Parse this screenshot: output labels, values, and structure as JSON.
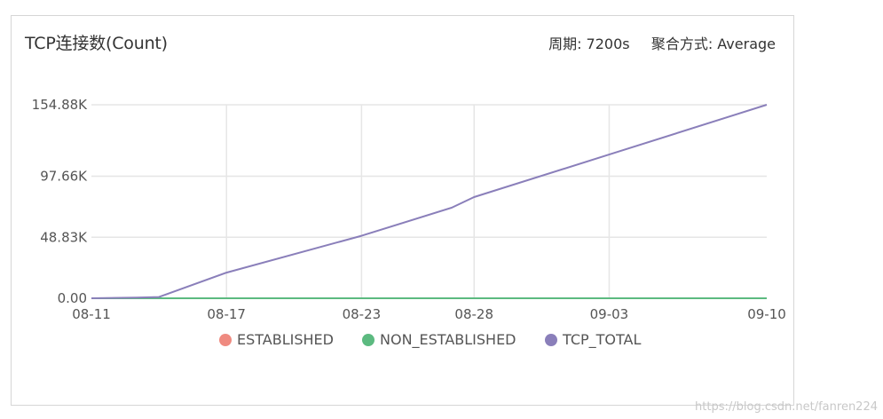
{
  "panel": {
    "title": "TCP连接数(Count)",
    "period_label": "周期: 7200s",
    "aggregation_label": "聚合方式: Average"
  },
  "chart_data": {
    "type": "line",
    "title": "TCP连接数(Count)",
    "xlabel": "",
    "ylabel": "",
    "x_tick_labels": [
      "08-11",
      "08-17",
      "08-23",
      "08-28",
      "09-03",
      "09-10"
    ],
    "y_tick_labels": [
      "0.00",
      "48.83K",
      "97.66K",
      "154.88K"
    ],
    "ylim": [
      0,
      154.88
    ],
    "y_unit": "K",
    "x_domain": [
      "2019-08-11",
      "2019-09-10"
    ],
    "grid": true,
    "legend_position": "bottom",
    "series": [
      {
        "name": "ESTABLISHED",
        "color": "#ef8a80",
        "points": [
          [
            "2019-08-11",
            0
          ],
          [
            "2019-09-10",
            0
          ]
        ]
      },
      {
        "name": "NON_ESTABLISHED",
        "color": "#5cba80",
        "points": [
          [
            "2019-08-11",
            0
          ],
          [
            "2019-09-10",
            0
          ]
        ]
      },
      {
        "name": "TCP_TOTAL",
        "color": "#8a7fba",
        "points": [
          [
            "2019-08-11",
            0
          ],
          [
            "2019-08-13",
            0.5
          ],
          [
            "2019-08-14",
            1.0
          ],
          [
            "2019-08-17",
            20.5
          ],
          [
            "2019-08-23",
            50.0
          ],
          [
            "2019-08-27",
            72.5
          ],
          [
            "2019-08-28",
            81.0
          ],
          [
            "2019-09-03",
            115.0
          ],
          [
            "2019-09-10",
            154.88
          ]
        ]
      }
    ]
  },
  "watermark": "https://blog.csdn.net/fanren224"
}
